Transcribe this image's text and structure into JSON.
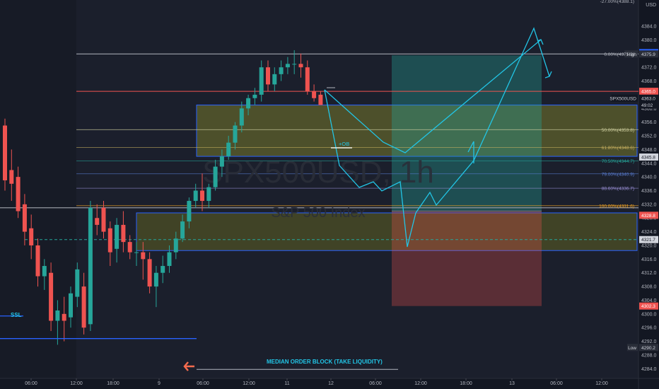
{
  "chart_data": {
    "type": "candlestick",
    "symbol": "SPX500USD",
    "watermark_symbol": "SPX500USD, 1h",
    "watermark_name": "S&P 500 Index",
    "currency": "USD",
    "y_range": [
      4282,
      4390
    ],
    "y_ticks": [
      4384.0,
      4380.0,
      4376.0,
      4372.0,
      4368.0,
      4364.0,
      4360.0,
      4356.0,
      4352.0,
      4348.0,
      4344.0,
      4340.0,
      4336.0,
      4332.0,
      4328.0,
      4324.0,
      4320.0,
      4316.0,
      4312.0,
      4308.0,
      4304.0,
      4300.0,
      4296.0,
      4292.0,
      4288.0,
      4284.0
    ],
    "x_ticks": [
      "06:00",
      "12:00",
      "18:00",
      "9",
      "06:00",
      "12:00",
      "11",
      "12",
      "06:00",
      "12:00",
      "18:00",
      "13",
      "06:00",
      "12:00"
    ],
    "candles": [
      [
        4355,
        4357,
        4336,
        4339
      ],
      [
        4342,
        4348,
        4333,
        4338
      ],
      [
        4340,
        4343,
        4328,
        4330
      ],
      [
        4332,
        4335,
        4320,
        4324
      ],
      [
        4325,
        4329,
        4316,
        4320
      ],
      [
        4320,
        4322,
        4308,
        4311
      ],
      [
        4311,
        4316,
        4307,
        4314
      ],
      [
        4312,
        4315,
        4295,
        4298
      ],
      [
        4298,
        4304,
        4291,
        4301
      ],
      [
        4300,
        4305,
        4292,
        4298
      ],
      [
        4299,
        4308,
        4296,
        4306
      ],
      [
        4305,
        4315,
        4302,
        4313
      ],
      [
        4308,
        4312,
        4294,
        4296
      ],
      [
        4297,
        4333,
        4295,
        4331
      ],
      [
        4328,
        4332,
        4323,
        4326
      ],
      [
        4331,
        4333,
        4322,
        4324
      ],
      [
        4325,
        4327,
        4314,
        4318
      ],
      [
        4319,
        4328,
        4315,
        4326
      ],
      [
        4326,
        4330,
        4318,
        4321
      ],
      [
        4321,
        4323,
        4316,
        4318
      ],
      [
        4318,
        4321,
        4314,
        4318
      ],
      [
        4318,
        4321,
        4310,
        4316
      ],
      [
        4316,
        4318,
        4306,
        4308
      ],
      [
        4308,
        4314,
        4302,
        4312
      ],
      [
        4312,
        4317,
        4309,
        4314
      ],
      [
        4314,
        4320,
        4312,
        4318
      ],
      [
        4318,
        4324,
        4316,
        4322
      ],
      [
        4322,
        4329,
        4321,
        4327
      ],
      [
        4327,
        4334,
        4325,
        4333
      ],
      [
        4333,
        4338,
        4331,
        4336
      ],
      [
        4336,
        4341,
        4330,
        4333
      ],
      [
        4333,
        4338,
        4331,
        4337
      ],
      [
        4337,
        4345,
        4336,
        4343
      ],
      [
        4343,
        4348,
        4340,
        4346
      ],
      [
        4346,
        4352,
        4345,
        4350
      ],
      [
        4350,
        4356,
        4348,
        4355
      ],
      [
        4355,
        4362,
        4353,
        4360
      ],
      [
        4360,
        4364,
        4358,
        4363
      ],
      [
        4363,
        4366,
        4361,
        4364
      ],
      [
        4364,
        4374,
        4362,
        4372
      ],
      [
        4372,
        4374,
        4365,
        4367
      ],
      [
        4367,
        4372,
        4365,
        4370
      ],
      [
        4370,
        4374,
        4368,
        4372
      ],
      [
        4372,
        4375,
        4370,
        4373
      ],
      [
        4373,
        4377,
        4370,
        4373
      ],
      [
        4373,
        4376,
        4369,
        4372
      ],
      [
        4372,
        4374,
        4364,
        4365
      ],
      [
        4365,
        4367,
        4362,
        4363
      ],
      [
        4364,
        4365,
        4361,
        4361
      ]
    ],
    "annotations": {
      "boxes": [
        {
          "label": "supply-zone-upper",
          "top": 4361.0,
          "bottom": 4346.0,
          "start_index": 34,
          "color": "#8c8c2a"
        },
        {
          "label": "demand-zone-lower",
          "top": 4329.5,
          "bottom": 4318.5,
          "start_index": 23,
          "color": "#6e6e1e"
        }
      ],
      "long_position": {
        "entry": 4330.0,
        "target": 4375.5,
        "stop": 4302.3
      },
      "fib_levels": [
        {
          "label": "0.00%(4375.9)",
          "value": 4375.9,
          "color": "#b2b5be"
        },
        {
          "label": "50.00%(4353.8)",
          "value": 4353.8,
          "color": "#cfcfa0"
        },
        {
          "label": "61.80%(4348.6)",
          "value": 4348.6,
          "color": "#c8b060"
        },
        {
          "label": "70.50%(4344.7)",
          "value": 4344.7,
          "color": "#26a69a"
        },
        {
          "label": "79.00%(4340.9)",
          "value": 4340.9,
          "color": "#5b7fd6"
        },
        {
          "label": "88.60%(4336.7)",
          "value": 4336.7,
          "color": "#9a8fd6"
        },
        {
          "label": "100.00%(4331.6)",
          "value": 4331.6,
          "color": "#f5a623"
        }
      ],
      "top_fib_label": "-27.00%(4388.1)",
      "ob_label": "+OB",
      "ssl_label": "SSL",
      "median_label": "MEDIAN ORDER BLOCK (TAKE LIQUIDITY)",
      "high_label": "High",
      "low_label": "Low"
    },
    "price_tags": [
      {
        "value": 4376.3,
        "text": "4376.3",
        "bg": "#2962ff",
        "fg": "#ffffff"
      },
      {
        "value": 4375.9,
        "text": "4375.9",
        "bg": "#2a2e39",
        "fg": "#d1d4dc",
        "side": "High"
      },
      {
        "value": 4365.0,
        "text": "4365.0",
        "bg": "#ef5350",
        "fg": "#ffffff"
      },
      {
        "value": 4363.0,
        "text": "4363.0",
        "bg": "#131722",
        "fg": "#d1d4dc",
        "side": "SPX500USD"
      },
      {
        "value": 4361.0,
        "text": "49:02",
        "bg": "#131722",
        "fg": "#d1d4dc"
      },
      {
        "value": 4345.8,
        "text": "4345.8",
        "bg": "#d1d4dc",
        "fg": "#131722"
      },
      {
        "value": 4328.8,
        "text": "4328.8",
        "bg": "#ef5350",
        "fg": "#ffffff"
      },
      {
        "value": 4321.7,
        "text": "4321.7",
        "bg": "#d1d4dc",
        "fg": "#131722"
      },
      {
        "value": 4302.3,
        "text": "4302.3",
        "bg": "#ef5350",
        "fg": "#ffffff"
      },
      {
        "value": 4290.2,
        "text": "4290.2",
        "bg": "#2a2e39",
        "fg": "#d1d4dc",
        "side": "Low"
      }
    ]
  },
  "ui": {
    "currency_label": "USD"
  }
}
